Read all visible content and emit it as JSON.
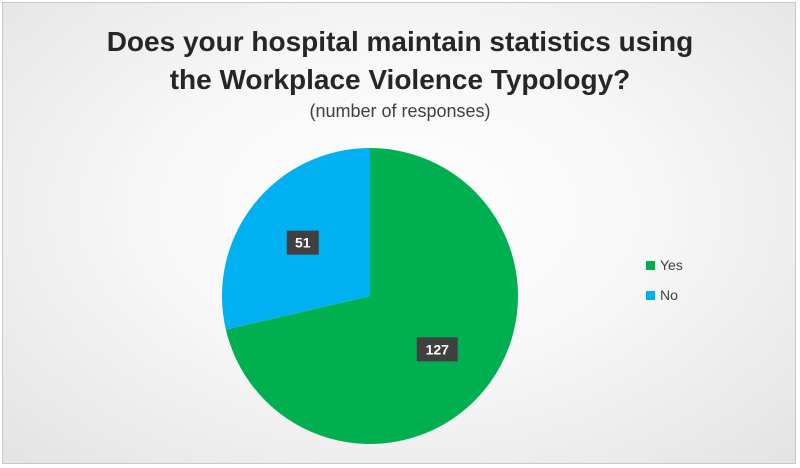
{
  "chart_data": {
    "type": "pie",
    "title_line1": "Does your hospital maintain statistics using",
    "title_line2": "the Workplace Violence Typology?",
    "subtitle": "(number of responses)",
    "categories": [
      "Yes",
      "No"
    ],
    "values": [
      127,
      51
    ],
    "colors": [
      "#00B050",
      "#00B0F0"
    ],
    "legend_position": "right"
  }
}
